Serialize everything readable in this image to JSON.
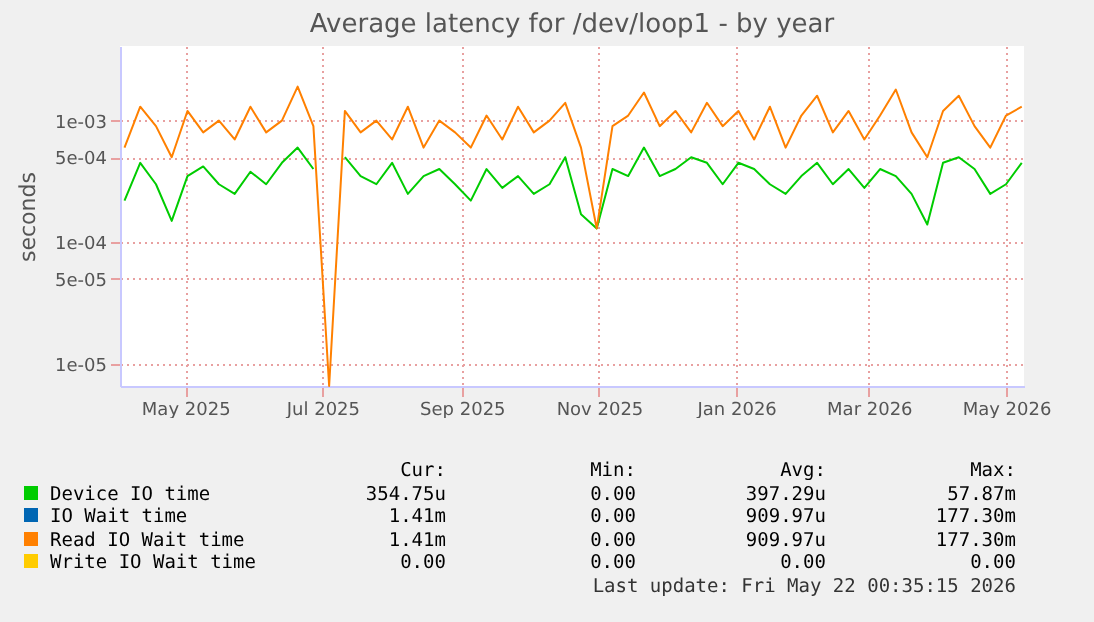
{
  "chart_data": {
    "type": "line",
    "title": "Average latency for /dev/loop1 - by year",
    "ylabel": "seconds",
    "x": [
      "2025-04-04",
      "2025-04-11",
      "2025-04-18",
      "2025-04-25",
      "2025-05-02",
      "2025-05-09",
      "2025-05-16",
      "2025-05-23",
      "2025-05-30",
      "2025-06-06",
      "2025-06-13",
      "2025-06-20",
      "2025-06-27",
      "2025-07-04",
      "2025-07-11",
      "2025-07-18",
      "2025-07-25",
      "2025-08-01",
      "2025-08-08",
      "2025-08-15",
      "2025-08-22",
      "2025-08-29",
      "2025-09-05",
      "2025-09-12",
      "2025-09-19",
      "2025-09-26",
      "2025-10-03",
      "2025-10-10",
      "2025-10-17",
      "2025-10-24",
      "2025-10-31",
      "2025-11-07",
      "2025-11-14",
      "2025-11-21",
      "2025-11-28",
      "2025-12-05",
      "2025-12-12",
      "2025-12-19",
      "2025-12-26",
      "2026-01-02",
      "2026-01-09",
      "2026-01-16",
      "2026-01-23",
      "2026-01-30",
      "2026-02-06",
      "2026-02-13",
      "2026-02-20",
      "2026-02-27",
      "2026-03-06",
      "2026-03-13",
      "2026-03-20",
      "2026-03-27",
      "2026-04-03",
      "2026-04-10",
      "2026-04-17",
      "2026-04-24",
      "2026-05-01",
      "2026-05-08"
    ],
    "series": [
      {
        "name": "Device IO time",
        "color": "#00cc00",
        "values": [
          0.00022,
          0.00045,
          0.0003,
          0.00015,
          0.00035,
          0.00042,
          0.0003,
          0.00025,
          0.00038,
          0.0003,
          0.00045,
          0.0006,
          0.0004,
          null,
          0.0005,
          0.00035,
          0.0003,
          0.00045,
          0.00025,
          0.00035,
          0.0004,
          0.0003,
          0.00022,
          0.0004,
          0.00028,
          0.00035,
          0.00025,
          0.0003,
          0.0005,
          0.00017,
          0.00013,
          0.0004,
          0.00035,
          0.0006,
          0.00035,
          0.0004,
          0.0005,
          0.00045,
          0.0003,
          0.00045,
          0.0004,
          0.0003,
          0.00025,
          0.00035,
          0.00045,
          0.0003,
          0.0004,
          0.00028,
          0.0004,
          0.00035,
          0.00025,
          0.00014,
          0.00045,
          0.0005,
          0.0004,
          0.00025,
          0.0003,
          0.00045
        ]
      },
      {
        "name": "IO Wait time",
        "color": "#0066b3",
        "values": [
          null,
          null,
          null,
          null,
          null,
          null,
          null,
          null,
          null,
          null,
          null,
          null,
          null,
          null,
          null,
          null,
          null,
          null,
          null,
          null,
          null,
          null,
          null,
          null,
          null,
          null,
          null,
          null,
          null,
          null,
          null,
          null,
          null,
          null,
          null,
          null,
          null,
          null,
          null,
          null,
          null,
          null,
          null,
          null,
          null,
          null,
          null,
          null,
          null,
          null,
          null,
          null,
          null,
          null,
          null,
          null,
          null,
          null
        ]
      },
      {
        "name": "Read IO Wait time",
        "color": "#ff8000",
        "values": [
          0.0006,
          0.0013,
          0.0009,
          0.0005,
          0.0012,
          0.0008,
          0.001,
          0.0007,
          0.0013,
          0.0008,
          0.001,
          0.0019,
          0.0009,
          6.6e-06,
          0.0012,
          0.0008,
          0.001,
          0.0007,
          0.0013,
          0.0006,
          0.001,
          0.0008,
          0.0006,
          0.0011,
          0.0007,
          0.0013,
          0.0008,
          0.001,
          0.0014,
          0.0006,
          0.00013,
          0.0009,
          0.0011,
          0.0017,
          0.0009,
          0.0012,
          0.0008,
          0.0014,
          0.0009,
          0.0012,
          0.0007,
          0.0013,
          0.0006,
          0.0011,
          0.0016,
          0.0008,
          0.0012,
          0.0007,
          0.0011,
          0.0018,
          0.0008,
          0.0005,
          0.0012,
          0.0016,
          0.0009,
          0.0006,
          0.0011,
          0.0013
        ]
      },
      {
        "name": "Write IO Wait time",
        "color": "#ffcc00",
        "values": [
          null,
          null,
          null,
          null,
          null,
          null,
          null,
          null,
          null,
          null,
          null,
          null,
          null,
          null,
          null,
          null,
          null,
          null,
          null,
          null,
          null,
          null,
          null,
          null,
          null,
          null,
          null,
          null,
          null,
          null,
          null,
          null,
          null,
          null,
          null,
          null,
          null,
          null,
          null,
          null,
          null,
          null,
          null,
          null,
          null,
          null,
          null,
          null,
          null,
          null,
          null,
          null,
          null,
          null,
          null,
          null,
          null,
          null
        ]
      }
    ],
    "log": "y",
    "xlim": [
      "2025-04-02",
      "2026-05-09"
    ],
    "xticks": [
      {
        "value": "2025-05-01",
        "label": "May 2025"
      },
      {
        "value": "2025-07-01",
        "label": "Jul 2025"
      },
      {
        "value": "2025-09-01",
        "label": "Sep 2025"
      },
      {
        "value": "2025-11-01",
        "label": "Nov 2025"
      },
      {
        "value": "2026-01-01",
        "label": "Jan 2026"
      },
      {
        "value": "2026-03-01",
        "label": "Mar 2026"
      },
      {
        "value": "2026-05-01",
        "label": "May 2026"
      }
    ],
    "ylim": [
      6.6e-06,
      0.0041
    ],
    "yticks": [
      {
        "value": 1e-05,
        "label": "1e-05"
      },
      {
        "value": 5e-05,
        "label": "5e-05"
      },
      {
        "value": 0.0001,
        "label": "1e-04"
      },
      {
        "value": 0.0005,
        "label": "5e-04"
      },
      {
        "value": 0.001,
        "label": "1e-03"
      }
    ],
    "grid": true,
    "legend": "bottom",
    "marker": "none",
    "line_style": "solid",
    "annotations": [
      "Cur:",
      "Min:",
      "Avg:",
      "Max:",
      "354.75u",
      "0.00",
      "397.29u",
      "57.87m",
      "1.41m",
      "0.00",
      "909.97u",
      "177.30m",
      "1.41m",
      "0.00",
      "909.97u",
      "177.30m",
      "0.00",
      "0.00",
      "0.00",
      "0.00",
      "Last update: Fri May 22 00:35:15 2026"
    ]
  }
}
